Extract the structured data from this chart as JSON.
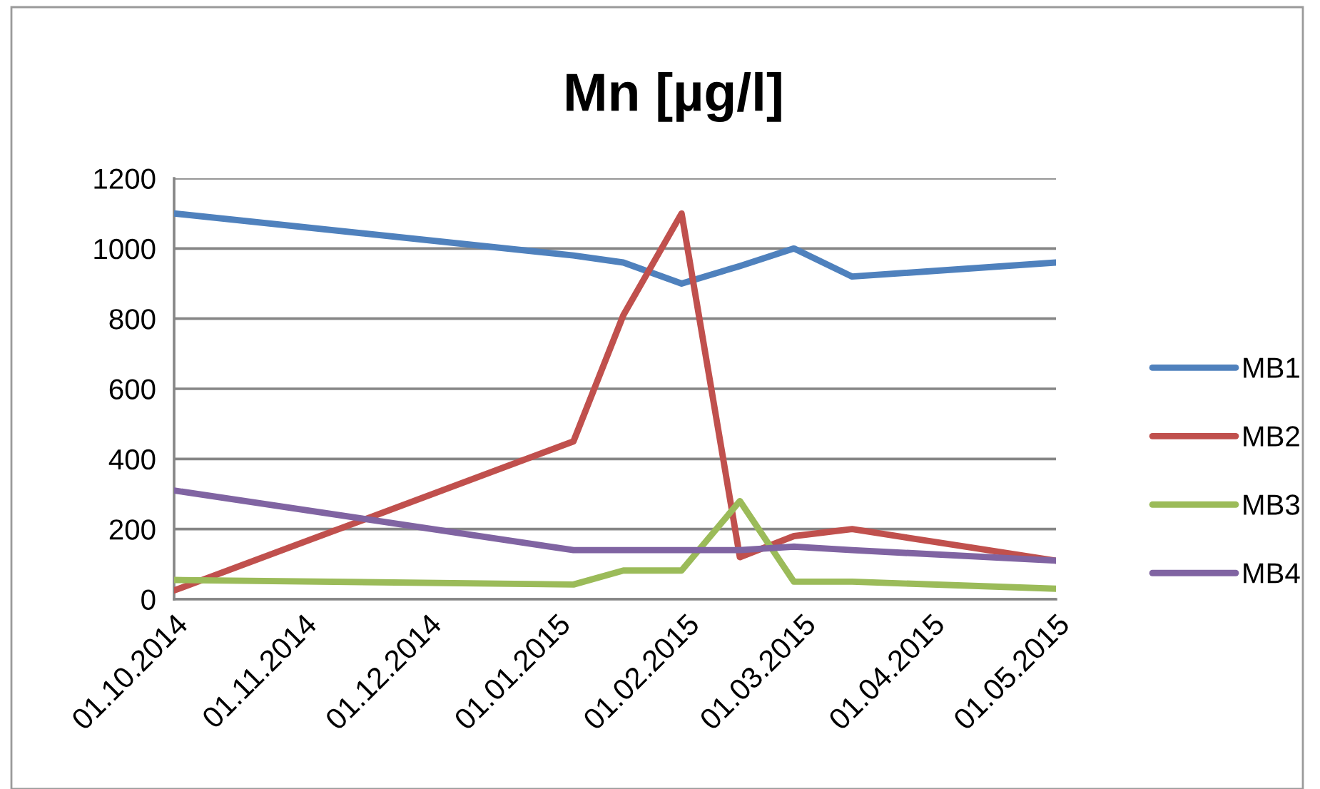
{
  "chart_data": {
    "type": "line",
    "title": "Mn [µg/l]",
    "x": [
      "2014-10-01",
      "2015-01-05",
      "2015-01-17",
      "2015-01-31",
      "2015-02-14",
      "2015-02-27",
      "2015-03-13",
      "2015-05-01"
    ],
    "series": [
      {
        "name": "MB1",
        "color": "#4f81bd",
        "values": [
          1100,
          980,
          960,
          900,
          950,
          1000,
          920,
          960
        ]
      },
      {
        "name": "MB2",
        "color": "#c0504d",
        "values": [
          25,
          450,
          810,
          1100,
          120,
          180,
          200,
          110
        ]
      },
      {
        "name": "MB3",
        "color": "#9bbb59",
        "values": [
          55,
          42,
          82,
          82,
          280,
          50,
          50,
          30
        ]
      },
      {
        "name": "MB4",
        "color": "#8064a2",
        "values": [
          310,
          140,
          140,
          140,
          140,
          150,
          140,
          110
        ]
      }
    ],
    "xlim": [
      "2014-10-01",
      "2015-05-01"
    ],
    "xticks": [
      {
        "value": "2014-10-01",
        "label": "01.10.2014"
      },
      {
        "value": "2014-11-01",
        "label": "01.11.2014"
      },
      {
        "value": "2014-12-01",
        "label": "01.12.2014"
      },
      {
        "value": "2015-01-01",
        "label": "01.01.2015"
      },
      {
        "value": "2015-02-01",
        "label": "01.02.2015"
      },
      {
        "value": "2015-03-01",
        "label": "01.03.2015"
      },
      {
        "value": "2015-04-01",
        "label": "01.04.2015"
      },
      {
        "value": "2015-05-01",
        "label": "01.05.2015"
      }
    ],
    "ylim": [
      0,
      1200
    ],
    "yticks": [
      0,
      200,
      400,
      600,
      800,
      1000,
      1200
    ],
    "grid": "y",
    "legend": "right",
    "line_style": "solid"
  }
}
